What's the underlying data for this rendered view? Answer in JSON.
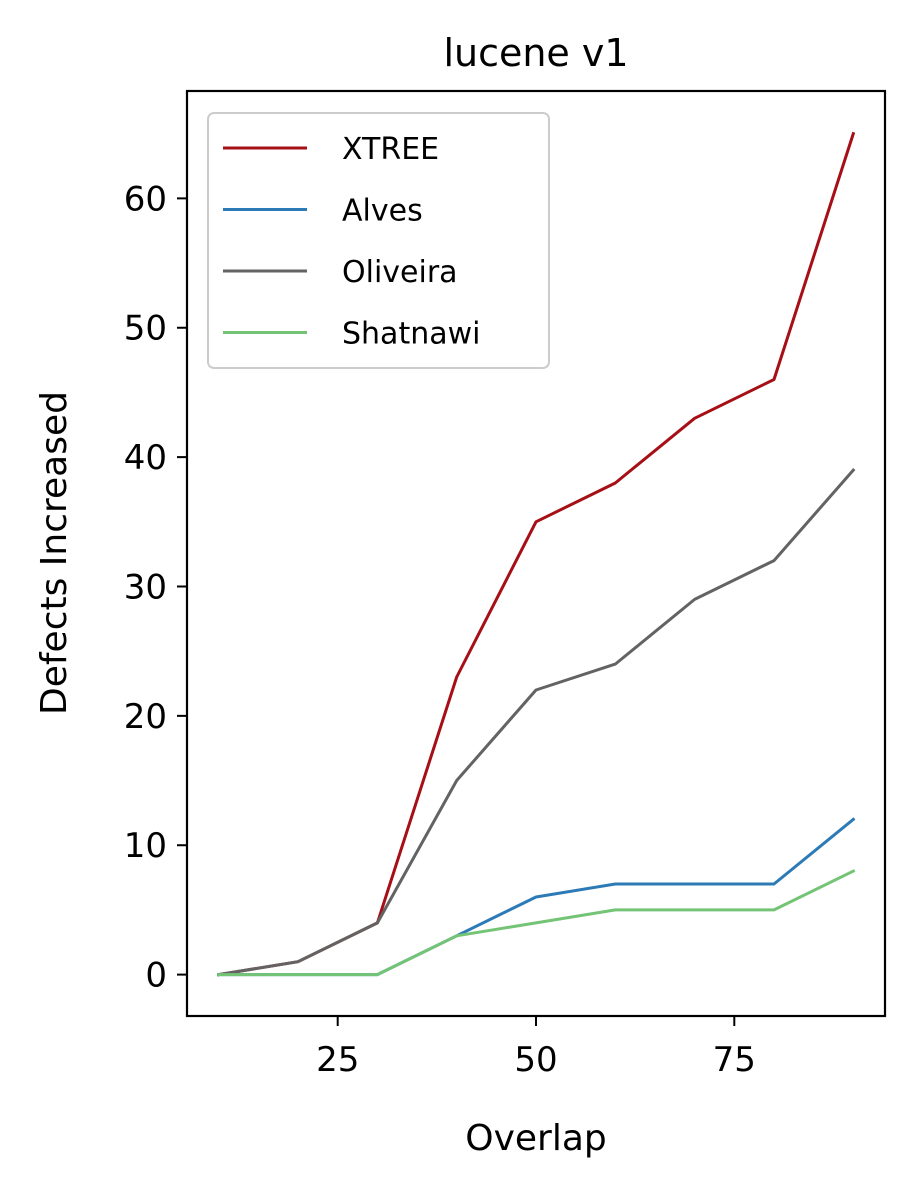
{
  "chart_data": {
    "type": "line",
    "title": "lucene v1",
    "xlabel": "Overlap",
    "ylabel": "Defects Increased",
    "x": [
      10,
      20,
      30,
      40,
      50,
      60,
      70,
      80,
      90
    ],
    "xlim": [
      6,
      94
    ],
    "ylim": [
      -3.2,
      68.3
    ],
    "xticks": [
      25,
      50,
      75
    ],
    "yticks": [
      0,
      10,
      20,
      30,
      40,
      50,
      60
    ],
    "grid": false,
    "legend_position": "top-left",
    "series": [
      {
        "name": "XTREE",
        "color": "#a50f15",
        "values": [
          0,
          1,
          4,
          23,
          35,
          38,
          43,
          46,
          65
        ]
      },
      {
        "name": "Alves",
        "color": "#2c7bb6",
        "values": [
          0,
          0,
          0,
          3,
          6,
          7,
          7,
          7,
          12
        ]
      },
      {
        "name": "Oliveira",
        "color": "#636363",
        "values": [
          0,
          1,
          4,
          15,
          22,
          24,
          29,
          32,
          39
        ]
      },
      {
        "name": "Shatnawi",
        "color": "#74c476",
        "values": [
          0,
          0,
          0,
          3,
          4,
          5,
          5,
          5,
          8
        ]
      }
    ]
  }
}
